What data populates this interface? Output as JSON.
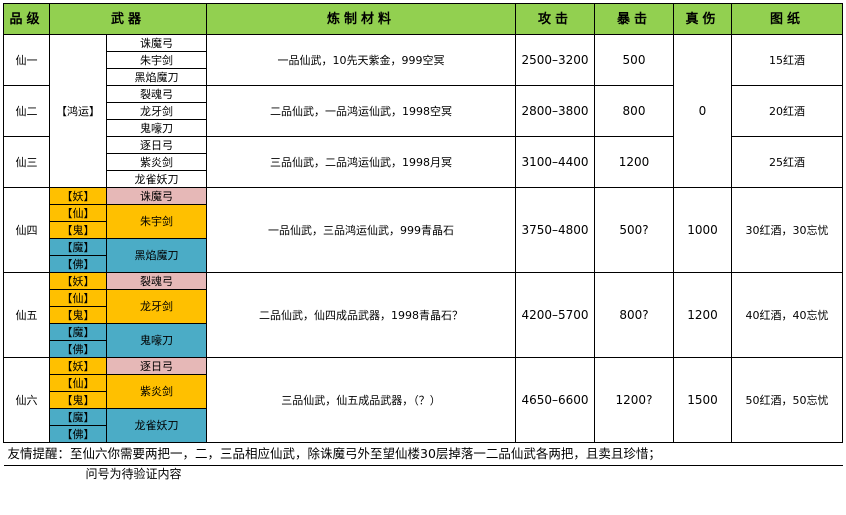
{
  "headers": [
    "品级",
    "武器",
    "炼制材料",
    "攻击",
    "暴击",
    "真伤",
    "图纸"
  ],
  "group_a": {
    "shared_label": "【鸿运】",
    "shared_true_dmg": "0",
    "rows": [
      {
        "grade": "仙一",
        "weapons": [
          "诛魔弓",
          "朱宇剑",
          "黑焰魔刀"
        ],
        "material": "一品仙武，10先天紫金，999空冥",
        "attack": "2500–3200",
        "crit": "500",
        "blueprint": "15红酒"
      },
      {
        "grade": "仙二",
        "weapons": [
          "裂魂弓",
          "龙牙剑",
          "鬼嚎刀"
        ],
        "material": "二品仙武，一品鸿运仙武，1998空冥",
        "attack": "2800–3800",
        "crit": "800",
        "blueprint": "20红酒"
      },
      {
        "grade": "仙三",
        "weapons": [
          "逐日弓",
          "紫炎剑",
          "龙雀妖刀"
        ],
        "material": "三品仙武，二品鸿运仙武，1998月冥",
        "attack": "3100–4400",
        "crit": "1200",
        "blueprint": "25红酒"
      }
    ]
  },
  "group_b": {
    "tags": [
      "【妖】",
      "【仙】",
      "【鬼】",
      "【魔】",
      "【佛】"
    ],
    "colors": {
      "pink": "#e6b8b7",
      "orange": "#ffc000",
      "blue": "#4bacc6",
      "header": "#92d050"
    },
    "rows": [
      {
        "grade": "仙四",
        "weapons": [
          "诛魔弓",
          "朱宇剑",
          "黑焰魔刀"
        ],
        "material": "一品仙武，三品鸿运仙武，999青晶石",
        "attack": "3750–4800",
        "crit": "500?",
        "true_dmg": "1000",
        "blueprint": "30红酒，30忘忧"
      },
      {
        "grade": "仙五",
        "weapons": [
          "裂魂弓",
          "龙牙剑",
          "鬼嚎刀"
        ],
        "material": "二品仙武，仙四成品武器，1998青晶石？",
        "attack": "4200–5700",
        "crit": "800?",
        "true_dmg": "1200",
        "blueprint": "40红酒，40忘忧"
      },
      {
        "grade": "仙六",
        "weapons": [
          "逐日弓",
          "紫炎剑",
          "龙雀妖刀"
        ],
        "material": "三品仙武，仙五成品武器，（？）",
        "attack": "4650–6600",
        "crit": "1200?",
        "true_dmg": "1500",
        "blueprint": "50红酒，50忘忧"
      }
    ]
  },
  "notes": {
    "line1": "友情提醒：至仙六你需要两把一，二，三品相应仙武，除诛魔弓外至望仙楼30层掉落一二品仙武各两把，且卖且珍惜；",
    "line2": "问号为待验证内容"
  }
}
